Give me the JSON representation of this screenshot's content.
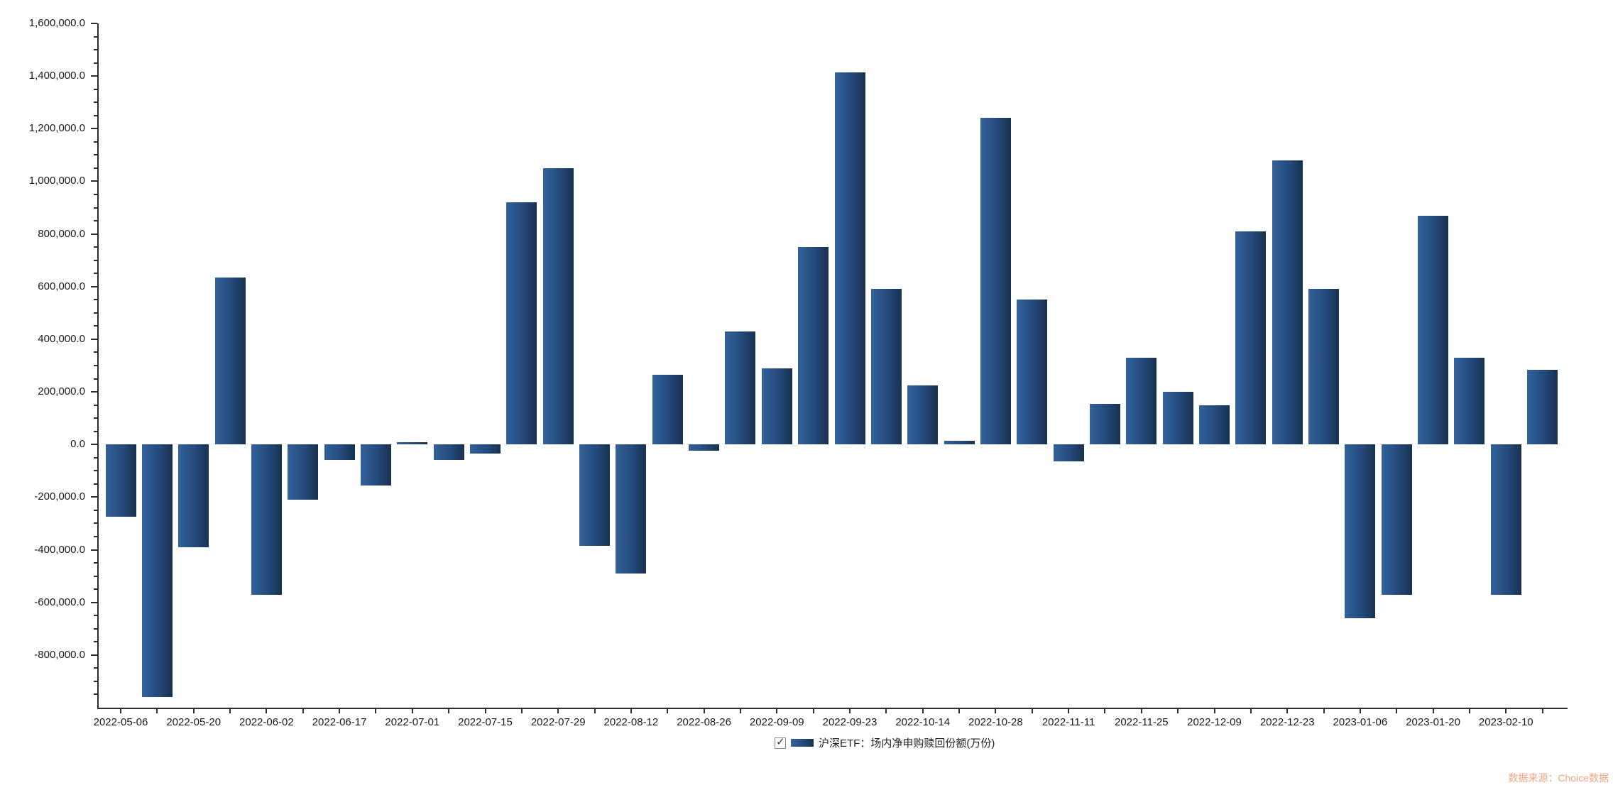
{
  "chart_data": {
    "type": "bar",
    "title": "",
    "series_name": "沪深ETF：场内净申购赎回份额(万份)",
    "unit": "万份",
    "bar_count": 40,
    "label_every_n_bars": 2,
    "x_tick_labels": [
      "2022-05-06",
      "2022-05-20",
      "2022-06-02",
      "2022-06-17",
      "2022-07-01",
      "2022-07-15",
      "2022-07-29",
      "2022-08-12",
      "2022-08-26",
      "2022-09-09",
      "2022-09-23",
      "2022-10-14",
      "2022-10-28",
      "2022-11-11",
      "2022-11-25",
      "2022-12-09",
      "2022-12-23",
      "2023-01-06",
      "2023-01-20",
      "2023-02-10"
    ],
    "values": [
      -275000,
      -960000,
      -390000,
      635000,
      -570000,
      -210000,
      -60000,
      -155000,
      10000,
      -60000,
      -35000,
      920000,
      1050000,
      -385000,
      -490000,
      265000,
      -25000,
      430000,
      290000,
      750000,
      1415000,
      590000,
      225000,
      15000,
      1240000,
      550000,
      -65000,
      155000,
      330000,
      200000,
      150000,
      810000,
      1080000,
      590000,
      -660000,
      -570000,
      870000,
      330000,
      -570000,
      285000
    ],
    "y_axis": {
      "min": -1000000,
      "max": 1600000,
      "major_step": 200000,
      "minor_step": 50000,
      "labels": [
        "1,600,000.0",
        "1,400,000.0",
        "1,200,000.0",
        "1,000,000.0",
        "800,000.0",
        "600,000.0",
        "400,000.0",
        "200,000.0",
        "0.0",
        "-200,000.0",
        "-400,000.0",
        "-600,000.0",
        "-800,000.0"
      ]
    },
    "grid": "off",
    "legend_position": "bottom-center",
    "bar_color_gradient": [
      "#33629c",
      "#17314f"
    ]
  },
  "legend": {
    "checkbox_checked": true,
    "checkmark": "✓",
    "label": "沪深ETF：场内净申购赎回份额(万份)"
  },
  "watermark": {
    "text": "数据来源：Choice数据",
    "color": "#f3a37f"
  }
}
